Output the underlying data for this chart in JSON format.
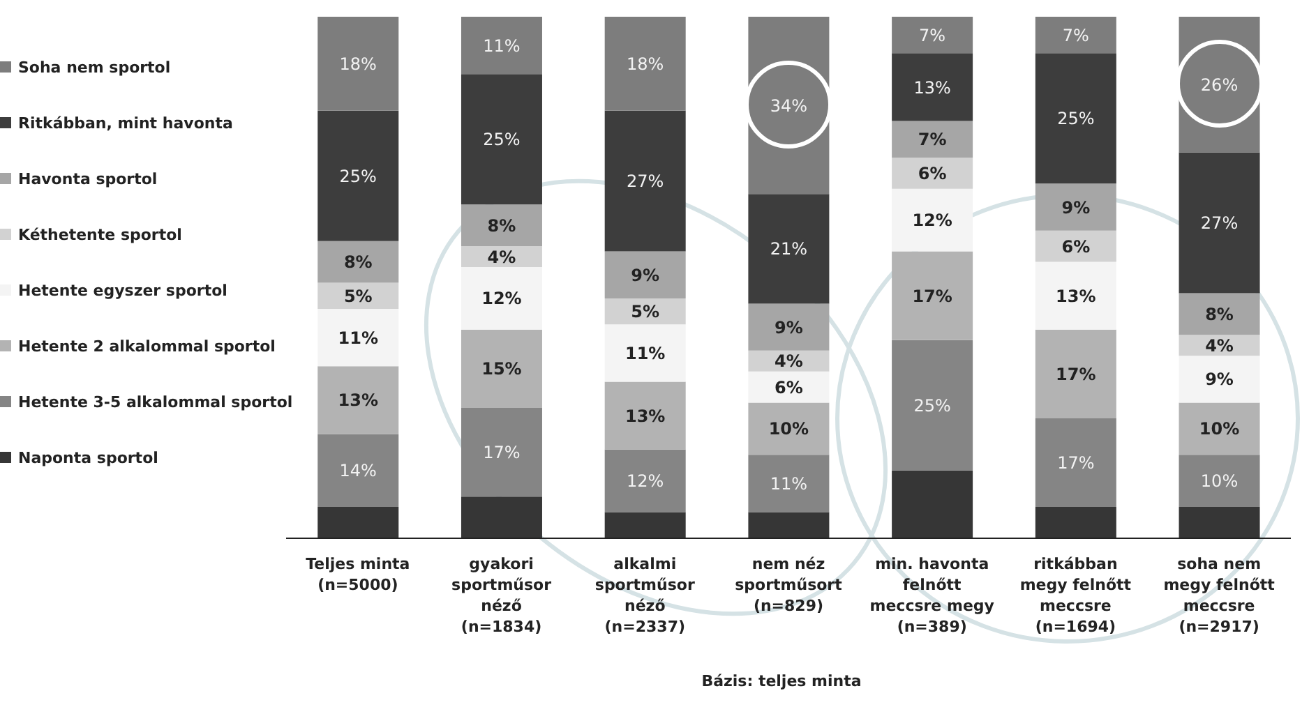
{
  "chart_data": {
    "type": "bar",
    "stacked": true,
    "legend": "left",
    "categories": [
      "Teljes minta (n=5000)",
      "gyakori sportműsor néző (n=1834)",
      "alkalmi sportműsor néző (n=2337)",
      "nem néz sportműsort (n=829)",
      "min. havonta felnőtt meccsre megy (n=389)",
      "ritkábban megy felnőtt meccsre (n=1694)",
      "soha nem megy felnőtt meccsre (n=2917)"
    ],
    "series": [
      {
        "name": "Naponta sportol",
        "color": "#363636",
        "values": [
          6,
          8,
          5,
          5,
          13,
          6,
          6
        ],
        "value_labels": [
          null,
          null,
          null,
          null,
          null,
          null,
          null
        ]
      },
      {
        "name": "Hetente 3-5 alkalommal sportol",
        "color": "#858585",
        "values": [
          14,
          17,
          12,
          11,
          25,
          17,
          10
        ],
        "value_labels": [
          "14%",
          "17%",
          "12%",
          "11%",
          "25%",
          "17%",
          "10%"
        ]
      },
      {
        "name": "Hetente 2 alkalommal sportol",
        "color": "#b3b3b3",
        "values": [
          13,
          15,
          13,
          10,
          17,
          17,
          10
        ],
        "value_labels": [
          "13%",
          "15%",
          "13%",
          "10%",
          "17%",
          "17%",
          "10%"
        ]
      },
      {
        "name": "Hetente egyszer sportol",
        "color": "#f4f4f4",
        "values": [
          11,
          12,
          11,
          6,
          12,
          13,
          9
        ],
        "value_labels": [
          "11%",
          "12%",
          "11%",
          "6%",
          "12%",
          "13%",
          "9%"
        ]
      },
      {
        "name": "Kéthetente sportol",
        "color": "#d2d2d2",
        "values": [
          5,
          4,
          5,
          4,
          6,
          6,
          4
        ],
        "value_labels": [
          "5%",
          "4%",
          "5%",
          "4%",
          "6%",
          "6%",
          "4%"
        ]
      },
      {
        "name": "Havonta sportol",
        "color": "#a6a6a6",
        "values": [
          8,
          8,
          9,
          9,
          7,
          9,
          8
        ],
        "value_labels": [
          "8%",
          "8%",
          "9%",
          "9%",
          "7%",
          "9%",
          "8%"
        ]
      },
      {
        "name": "Ritkábban, mint havonta",
        "color": "#3d3d3d",
        "values": [
          25,
          25,
          27,
          21,
          13,
          25,
          27
        ],
        "value_labels": [
          "25%",
          "25%",
          "27%",
          "21%",
          "13%",
          "25%",
          "27%"
        ]
      },
      {
        "name": "Soha nem sportol",
        "color": "#7d7d7d",
        "values": [
          18,
          11,
          18,
          34,
          7,
          7,
          26
        ],
        "value_labels": [
          "18%",
          "11%",
          "18%",
          "34%",
          "7%",
          "7%",
          "26%"
        ]
      }
    ],
    "annotations": [
      "Bázis: teljes minta"
    ]
  }
}
